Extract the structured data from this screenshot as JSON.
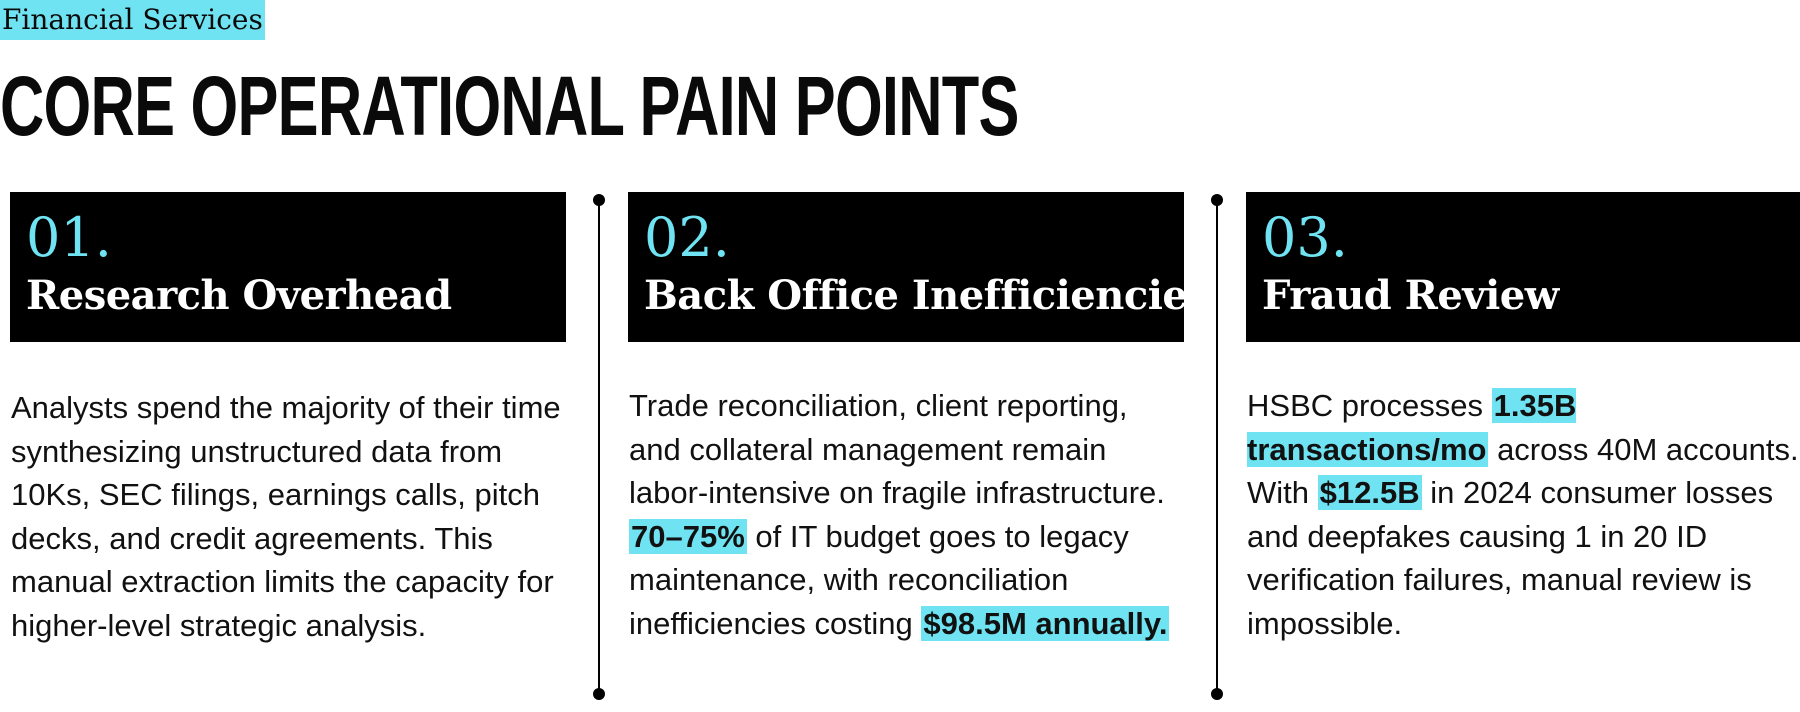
{
  "tag": "Financial Services",
  "title": "Core Operational Pain Points",
  "accent_color": "#6fe3f2",
  "cards": [
    {
      "number": "01.",
      "heading": "Research Overhead",
      "body": "Analysts spend the majority of their time synthesizing unstructured data from 10Ks, SEC filings, earnings calls, pitch decks, and credit agreements. This manual extraction limits the capacity for higher-level strategic analysis."
    },
    {
      "number": "02.",
      "heading": "Back Office Inefficiencies",
      "body_parts": {
        "a": "Trade reconciliation, client reporting, and collateral management remain labor-intensive on fragile infrastructure. ",
        "hl1": "70–75%",
        "b": " of IT budget goes to legacy maintenance, with reconciliation inefficiencies costing ",
        "hl2": "$98.5M annually."
      }
    },
    {
      "number": "03.",
      "heading": "Fraud Review",
      "body_parts": {
        "a": "HSBC processes ",
        "hl1": "1.35B transactions/mo",
        "b": " across 40M accounts. With ",
        "hl2": "$12.5B",
        "c": " in 2024 consumer losses and deepfakes causing 1 in 20 ID verification failures, manual review is impossible."
      }
    }
  ]
}
